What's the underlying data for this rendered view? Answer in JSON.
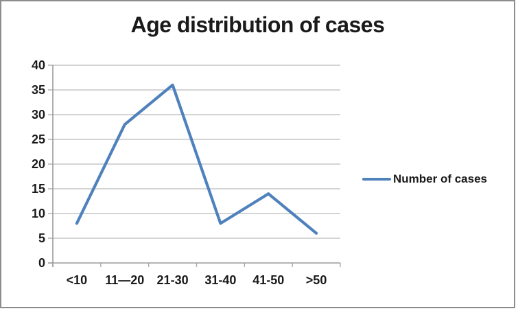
{
  "chart_data": {
    "type": "line",
    "title": "Age distribution of cases",
    "categories": [
      "<10",
      "11—20",
      "21-30",
      "31-40",
      "41-50",
      ">50"
    ],
    "series": [
      {
        "name": "Number of cases",
        "values": [
          8,
          28,
          36,
          8,
          14,
          6
        ],
        "color": "#4f81bd"
      }
    ],
    "xlabel": "",
    "ylabel": "",
    "ylim": [
      0,
      40
    ],
    "yticks": [
      0,
      5,
      10,
      15,
      20,
      25,
      30,
      35,
      40
    ],
    "grid": "horizontal",
    "legend_position": "right",
    "gridline_color": "#c6c6c6",
    "axis_color": "#9b9b9b",
    "tick_color": "#adadad",
    "text_color": "#1a1a1a",
    "background_color": "#ffffff",
    "frame_border_color": "#8c8c8c"
  }
}
